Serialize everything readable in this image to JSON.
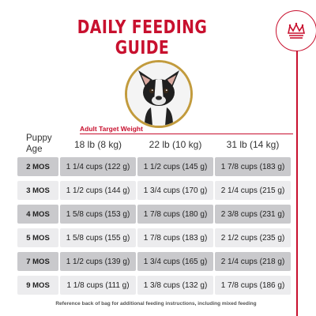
{
  "title": "DAILY FEEDING GUIDE",
  "logo_icon": "crown-icon",
  "colors": {
    "accent": "#c8102e",
    "gold": "#c29b3d",
    "row_dark": "#c9c9cc",
    "row_light": "#ececee"
  },
  "table": {
    "age_header": "Puppy Age",
    "target_header": "Adult Target Weight",
    "columns": [
      "18 lb (8 kg)",
      "22 lb (10 kg)",
      "31 lb (14 kg)"
    ],
    "rows": [
      {
        "age": "2 MOS",
        "values": [
          "1 1/4 cups (122 g)",
          "1 1/2 cups (145 g)",
          "1 7/8 cups (183 g)"
        ]
      },
      {
        "age": "3 MOS",
        "values": [
          "1 1/2 cups (144 g)",
          "1 3/4 cups (170 g)",
          "2 1/4 cups (215 g)"
        ]
      },
      {
        "age": "4 MOS",
        "values": [
          "1 5/8 cups (153 g)",
          "1 7/8 cups (180 g)",
          "2 3/8 cups (231 g)"
        ]
      },
      {
        "age": "5 MOS",
        "values": [
          "1 5/8 cups (155 g)",
          "1 7/8 cups (183 g)",
          "2 1/2 cups (235 g)"
        ]
      },
      {
        "age": "7 MOS",
        "values": [
          "1 1/2 cups (139 g)",
          "1 3/4 cups (165 g)",
          "2 1/4 cups (218 g)"
        ]
      },
      {
        "age": "9 MOS",
        "values": [
          "1 1/8 cups (111 g)",
          "1 3/8 cups (132 g)",
          "1 7/8 cups (186 g)"
        ]
      }
    ]
  },
  "footnote": "Reference back of bag for additional feeding instructions, including mixed feeding"
}
